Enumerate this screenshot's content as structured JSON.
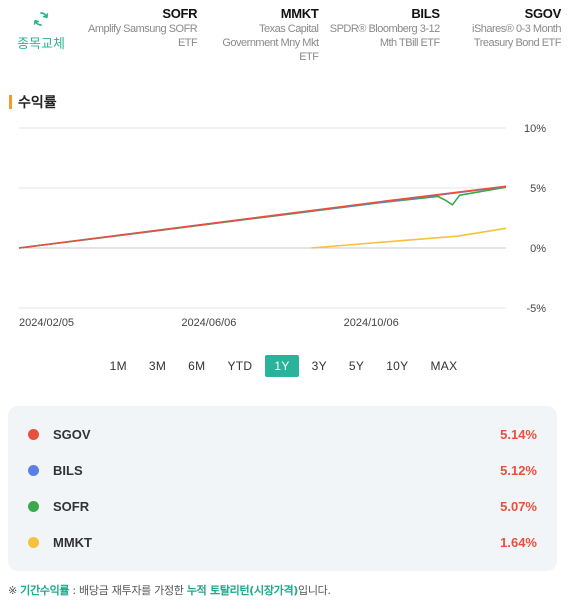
{
  "header": {
    "swap_label": "종목교체",
    "tickers": [
      {
        "symbol": "SOFR",
        "name": "Amplify Samsung SOFR ETF"
      },
      {
        "symbol": "MMKT",
        "name": "Texas Capital Government Mny Mkt ETF"
      },
      {
        "symbol": "BILS",
        "name": "SPDR® Bloomberg 3-12 Mth TBill ETF"
      },
      {
        "symbol": "SGOV",
        "name": "iShares® 0-3 Month Treasury Bond ETF"
      }
    ]
  },
  "section_title": "수익률",
  "chart_data": {
    "type": "line",
    "title": "",
    "xlabel": "",
    "ylabel": "",
    "x_ticks": [
      "2024/02/05",
      "2024/06/06",
      "2024/10/06"
    ],
    "y_ticks": [
      "10%",
      "5%",
      "0%",
      "-5%"
    ],
    "ylim": [
      -5,
      10
    ],
    "grid": true,
    "series": [
      {
        "name": "SGOV",
        "color": "#e8503c",
        "points": [
          [
            0,
            0
          ],
          [
            0.25,
            1.3
          ],
          [
            0.5,
            2.6
          ],
          [
            0.75,
            3.9
          ],
          [
            1,
            5.14
          ]
        ]
      },
      {
        "name": "BILS",
        "color": "#5b7fe6",
        "points": [
          [
            0,
            0
          ],
          [
            0.25,
            1.28
          ],
          [
            0.5,
            2.58
          ],
          [
            0.75,
            3.85
          ],
          [
            1,
            5.12
          ]
        ]
      },
      {
        "name": "SOFR",
        "color": "#3aa84b",
        "points": [
          [
            0,
            0
          ],
          [
            0.25,
            1.27
          ],
          [
            0.5,
            2.55
          ],
          [
            0.75,
            3.82
          ],
          [
            0.86,
            4.3
          ],
          [
            0.875,
            4.0
          ],
          [
            0.89,
            3.6
          ],
          [
            0.905,
            4.4
          ],
          [
            1,
            5.07
          ]
        ]
      },
      {
        "name": "MMKT",
        "color": "#f4c23b",
        "points": [
          [
            0.6,
            0
          ],
          [
            0.7,
            0.33
          ],
          [
            0.8,
            0.66
          ],
          [
            0.9,
            0.98
          ],
          [
            1,
            1.64
          ]
        ]
      }
    ]
  },
  "periods": {
    "items": [
      "1M",
      "3M",
      "6M",
      "YTD",
      "1Y",
      "3Y",
      "5Y",
      "10Y",
      "MAX"
    ],
    "active": "1Y"
  },
  "legend": [
    {
      "name": "SGOV",
      "color": "#e8503c",
      "value": "5.14%"
    },
    {
      "name": "BILS",
      "color": "#5b7fe6",
      "value": "5.12%"
    },
    {
      "name": "SOFR",
      "color": "#3aa84b",
      "value": "5.07%"
    },
    {
      "name": "MMKT",
      "color": "#f4c23b",
      "value": "1.64%"
    }
  ],
  "footnote": {
    "prefix": "※ ",
    "term": "기간수익률",
    "middle": " : 배당금 재투자를 가정한 ",
    "highlight": "누적 토탈리턴(시장가격)",
    "suffix": "입니다."
  }
}
